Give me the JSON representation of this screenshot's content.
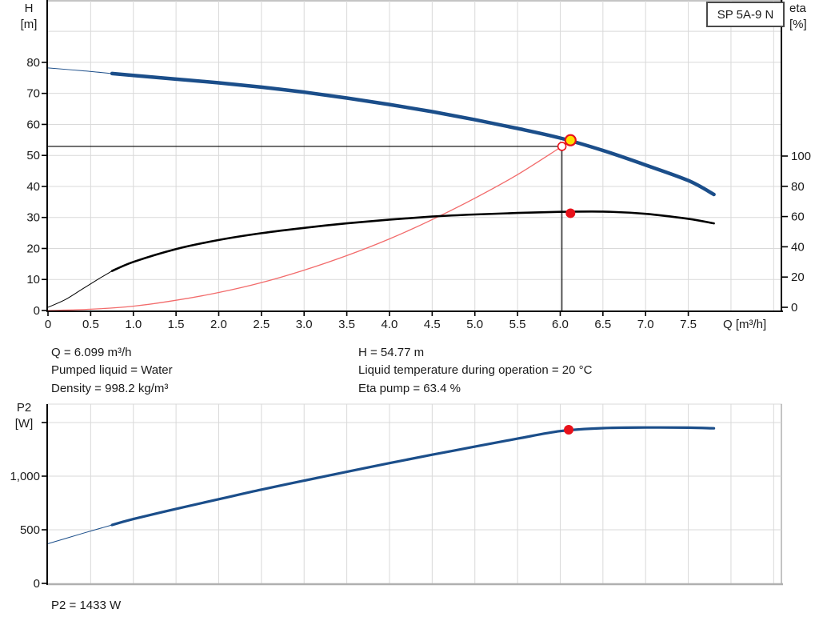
{
  "header": {
    "pump_model": "SP 5A-9 N"
  },
  "top_chart": {
    "left_axis_title_1": "H",
    "left_axis_title_2": "[m]",
    "right_axis_title_1": "eta",
    "right_axis_title_2": "[%]",
    "x_axis_title": "Q [m³/h]"
  },
  "bottom_chart": {
    "left_axis_title_1": "P2",
    "left_axis_title_2": "[W]"
  },
  "annotations": {
    "duty_left": [
      "Q = 6.099 m³/h",
      "Pumped liquid = Water",
      "Density = 998.2 kg/m³"
    ],
    "duty_right": [
      "H = 54.77 m",
      "Liquid temperature during operation = 20 °C",
      "Eta pump = 63.4 %"
    ],
    "p2_result": "P2 = 1433 W"
  },
  "colors": {
    "curve_blue": "#1b4e8a",
    "efficiency_black": "#000000",
    "system_red": "#f26b6b",
    "marker_red": "#e8111a",
    "marker_yellow": "#ffdf00",
    "grid": "#d9d9d9",
    "axis": "#000000",
    "frame_gray": "#b0b0b0",
    "label": "#1a1a1a"
  },
  "chart_data": [
    {
      "name": "qh-eta-chart",
      "type": "line",
      "title": "SP 5A-9 N pump curve",
      "xlabel": "Q [m³/h]",
      "ylabel_left": "H [m]",
      "ylabel_right": "eta [%]",
      "xlim": [
        0,
        8.6
      ],
      "ylim_left": [
        0,
        100
      ],
      "ylim_right": [
        0,
        205
      ],
      "grid": true,
      "x_tick_values": [
        0,
        0.5,
        1,
        1.5,
        2,
        2.5,
        3,
        3.5,
        4,
        4.5,
        5,
        5.5,
        6,
        6.5,
        7,
        7.5
      ],
      "x_tick_labels": [
        "0",
        "0.5",
        "1.0",
        "1.5",
        "2.0",
        "2.5",
        "3.0",
        "3.5",
        "4.0",
        "4.5",
        "5.0",
        "5.5",
        "6.0",
        "6.5",
        "7.0",
        "7.5"
      ],
      "y_left_tick_values": [
        0,
        10,
        20,
        30,
        40,
        50,
        60,
        70,
        80
      ],
      "y_left_tick_labels": [
        "0",
        "10",
        "20",
        "30",
        "40",
        "50",
        "60",
        "70",
        "80"
      ],
      "y_right_tick_values": [
        0,
        20,
        40,
        60,
        80,
        100
      ],
      "y_right_tick_labels": [
        "0",
        "20",
        "40",
        "60",
        "80",
        "100"
      ],
      "series": [
        {
          "name": "pump-head-curve",
          "axis": "left",
          "color": "#1b4e8a",
          "width": 4.5,
          "thin_until": 0.75,
          "x": [
            0,
            0.4,
            0.75,
            1,
            1.5,
            2,
            2.5,
            3,
            3.5,
            4,
            4.5,
            5,
            5.5,
            6,
            6.5,
            7,
            7.5,
            7.8
          ],
          "y": [
            78.2,
            77.3,
            76.4,
            75.8,
            74.6,
            73.4,
            72.0,
            70.4,
            68.5,
            66.4,
            64.1,
            61.5,
            58.7,
            55.6,
            51.6,
            46.9,
            41.9,
            37.4
          ]
        },
        {
          "name": "efficiency-curve",
          "axis": "right",
          "color": "#000000",
          "width": 2.6,
          "thin_until": 0.75,
          "x": [
            0,
            0.2,
            0.4,
            0.6,
            0.75,
            1,
            1.5,
            2,
            2.5,
            3,
            3.5,
            4,
            4.5,
            5,
            5.5,
            6,
            6.5,
            7,
            7.5,
            7.8
          ],
          "y": [
            0,
            5,
            12,
            19,
            24,
            30,
            38.5,
            44.5,
            49,
            52.5,
            55.5,
            58,
            60,
            61.4,
            62.4,
            63.1,
            63.3,
            61.8,
            58.5,
            55.5
          ]
        },
        {
          "name": "system-curve",
          "axis": "left",
          "color": "#f26b6b",
          "width": 1.3,
          "x": [
            0,
            0.5,
            1,
            1.5,
            2,
            2.5,
            3,
            3.5,
            4,
            4.5,
            5,
            5.5,
            6.02
          ],
          "y": [
            0,
            0.4,
            1.4,
            3.3,
            5.8,
            9.0,
            13.0,
            17.7,
            23.1,
            29.3,
            36.2,
            43.8,
            52.9
          ]
        }
      ],
      "duty_point": {
        "Q": 6.099,
        "H": 54.77,
        "eta_pct": 63.4
      },
      "markers": [
        {
          "name": "duty-marker-head",
          "axis": "left",
          "x": 6.12,
          "y": 54.9,
          "r": 6.5,
          "fill": "#ffdf00",
          "stroke": "#e8111a",
          "stroke_width": 2.2
        },
        {
          "name": "duty-marker-eta",
          "axis": "right",
          "x": 6.12,
          "y": 62.2,
          "r": 6,
          "fill": "#e8111a",
          "stroke": "none",
          "stroke_width": 0
        },
        {
          "name": "system-intersection-marker",
          "axis": "left",
          "x": 6.02,
          "y": 52.9,
          "r": 5,
          "fill": "#ffffff",
          "stroke": "#e8111a",
          "stroke_width": 1.6
        }
      ],
      "guide_lines": {
        "vline_q": 6.02,
        "hline_h": 52.9
      }
    },
    {
      "name": "p2-chart",
      "type": "line",
      "title": "P2 power curve",
      "ylabel": "P2 [W]",
      "xlim": [
        0,
        8.6
      ],
      "ylim": [
        0,
        1672
      ],
      "grid": true,
      "y_tick_values": [
        0,
        500,
        1000,
        1500
      ],
      "y_tick_labels": [
        "0",
        "500",
        "1,000",
        ""
      ],
      "grid_y_values": [
        500,
        1000,
        1500
      ],
      "series": [
        {
          "name": "p2-curve",
          "color": "#1b4e8a",
          "width": 3.2,
          "thin_until": 0.75,
          "x": [
            0,
            0.4,
            0.75,
            1,
            1.5,
            2,
            2.5,
            3,
            3.5,
            4,
            4.5,
            5,
            5.5,
            6,
            6.5,
            7,
            7.5,
            7.8
          ],
          "y": [
            370,
            465,
            545,
            600,
            695,
            785,
            875,
            958,
            1040,
            1122,
            1200,
            1275,
            1350,
            1420,
            1448,
            1454,
            1452,
            1446
          ]
        }
      ],
      "markers": [
        {
          "name": "duty-marker-p2",
          "x": 6.099,
          "y": 1433,
          "r": 6,
          "fill": "#e8111a",
          "stroke": "none",
          "stroke_width": 0
        }
      ],
      "result": {
        "P2_W": 1433
      }
    }
  ]
}
